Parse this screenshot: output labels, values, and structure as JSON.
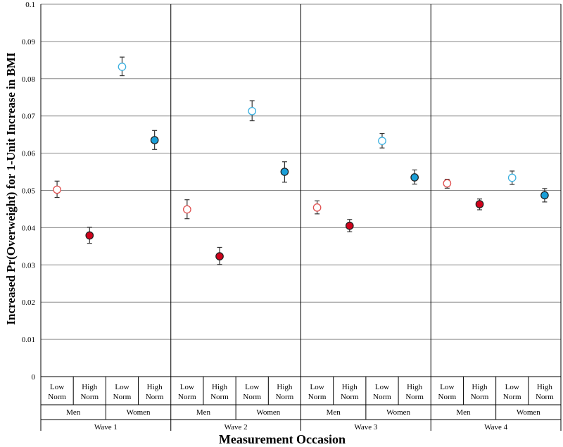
{
  "chart_data": {
    "type": "scatter",
    "ylabel": "Increased Pr(Overweight) for 1-Unit Increase in BMI",
    "xlabel": "Measurement Occasion",
    "ylim": [
      0,
      0.1
    ],
    "yticks": [
      0,
      0.01,
      0.02,
      0.03,
      0.04,
      0.05,
      0.06,
      0.07,
      0.08,
      0.09,
      0.1
    ],
    "ytick_labels": [
      "0",
      "0.01",
      "0.02",
      "0.03",
      "0.04",
      "0.05",
      "0.06",
      "0.07",
      "0.08",
      "0.09",
      "0.1"
    ],
    "grid": true,
    "colors": {
      "men": "#d0021b",
      "women": "#1a9fd8",
      "men_hollow_stroke": "#e05050",
      "women_hollow_stroke": "#3ab0e0"
    },
    "waves": [
      {
        "label": "Wave 1",
        "groups": [
          {
            "label": "Men",
            "sublabels": [
              "Low\nNorm",
              "High\nNorm"
            ]
          },
          {
            "label": "Women",
            "sublabels": [
              "Low\nNorm",
              "High\nNorm"
            ]
          }
        ],
        "points": [
          {
            "group": "Men",
            "norm": "Low Norm",
            "value": 0.0502,
            "err_low": 0.0481,
            "err_high": 0.0525,
            "filled": false
          },
          {
            "group": "Men",
            "norm": "High Norm",
            "value": 0.0379,
            "err_low": 0.0358,
            "err_high": 0.0401,
            "filled": true
          },
          {
            "group": "Women",
            "norm": "Low Norm",
            "value": 0.0832,
            "err_low": 0.0808,
            "err_high": 0.0858,
            "filled": false
          },
          {
            "group": "Women",
            "norm": "High Norm",
            "value": 0.0635,
            "err_low": 0.061,
            "err_high": 0.0661,
            "filled": true
          }
        ]
      },
      {
        "label": "Wave 2",
        "groups": [
          {
            "label": "Men",
            "sublabels": [
              "Low\nNorm",
              "High\nNorm"
            ]
          },
          {
            "label": "Women",
            "sublabels": [
              "Low\nNorm",
              "High\nNorm"
            ]
          }
        ],
        "points": [
          {
            "group": "Men",
            "norm": "Low Norm",
            "value": 0.0449,
            "err_low": 0.0424,
            "err_high": 0.0475,
            "filled": false
          },
          {
            "group": "Men",
            "norm": "High Norm",
            "value": 0.0323,
            "err_low": 0.0301,
            "err_high": 0.0347,
            "filled": true
          },
          {
            "group": "Women",
            "norm": "Low Norm",
            "value": 0.0713,
            "err_low": 0.0687,
            "err_high": 0.0741,
            "filled": false
          },
          {
            "group": "Women",
            "norm": "High Norm",
            "value": 0.055,
            "err_low": 0.0522,
            "err_high": 0.0577,
            "filled": true
          }
        ]
      },
      {
        "label": "Wave 3",
        "groups": [
          {
            "label": "Men",
            "sublabels": [
              "Low\nNorm",
              "High\nNorm"
            ]
          },
          {
            "label": "Women",
            "sublabels": [
              "Low\nNorm",
              "High\nNorm"
            ]
          }
        ],
        "points": [
          {
            "group": "Men",
            "norm": "Low Norm",
            "value": 0.0454,
            "err_low": 0.0437,
            "err_high": 0.0472,
            "filled": false
          },
          {
            "group": "Men",
            "norm": "High Norm",
            "value": 0.0405,
            "err_low": 0.0389,
            "err_high": 0.0422,
            "filled": true
          },
          {
            "group": "Women",
            "norm": "Low Norm",
            "value": 0.0633,
            "err_low": 0.0614,
            "err_high": 0.0653,
            "filled": false
          },
          {
            "group": "Women",
            "norm": "High Norm",
            "value": 0.0535,
            "err_low": 0.0517,
            "err_high": 0.0555,
            "filled": true
          }
        ]
      },
      {
        "label": "Wave 4",
        "groups": [
          {
            "label": "Men",
            "sublabels": [
              "Low\nNorm",
              "High\nNorm"
            ]
          },
          {
            "label": "Women",
            "sublabels": [
              "Low\nNorm",
              "High\nNorm"
            ]
          }
        ],
        "points": [
          {
            "group": "Men",
            "norm": "Low Norm",
            "value": 0.0519,
            "err_low": 0.0506,
            "err_high": 0.053,
            "filled": false
          },
          {
            "group": "Men",
            "norm": "High Norm",
            "value": 0.0463,
            "err_low": 0.0448,
            "err_high": 0.0477,
            "filled": true
          },
          {
            "group": "Women",
            "norm": "Low Norm",
            "value": 0.0534,
            "err_low": 0.0516,
            "err_high": 0.0552,
            "filled": false
          },
          {
            "group": "Women",
            "norm": "High Norm",
            "value": 0.0487,
            "err_low": 0.0469,
            "err_high": 0.0505,
            "filled": true
          }
        ]
      }
    ]
  }
}
